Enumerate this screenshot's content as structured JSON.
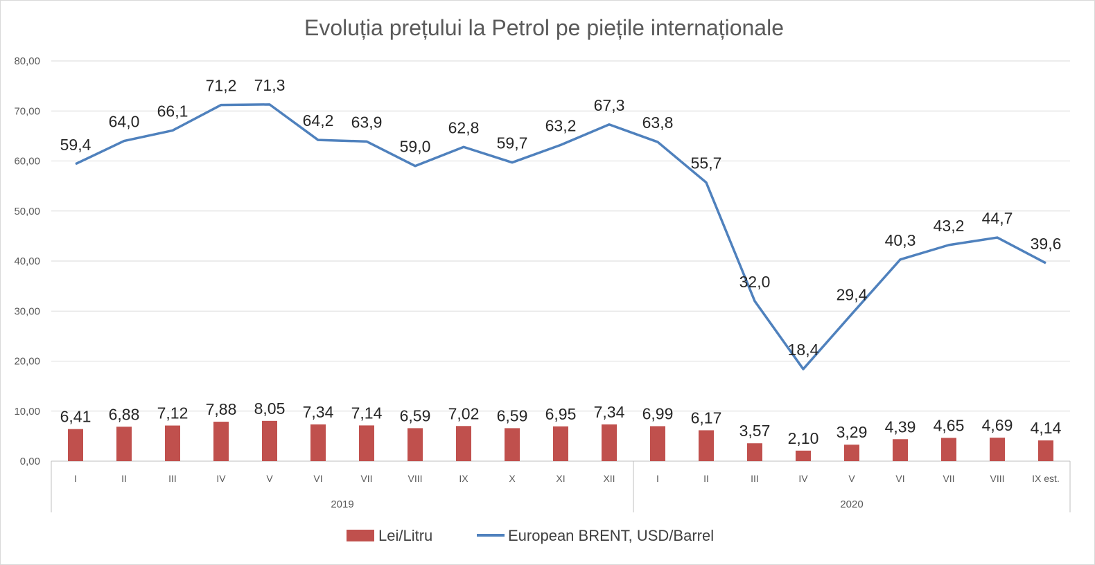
{
  "chart_data": {
    "type": "bar",
    "title": "Evoluția prețului la Petrol pe piețile internaționale",
    "ylim": [
      0,
      80
    ],
    "y_ticks": [
      "0,00",
      "10,00",
      "20,00",
      "30,00",
      "40,00",
      "50,00",
      "60,00",
      "70,00",
      "80,00"
    ],
    "grid": true,
    "legend_position": "bottom",
    "categories": [
      "I",
      "II",
      "III",
      "IV",
      "V",
      "VI",
      "VII",
      "VIII",
      "IX",
      "X",
      "XI",
      "XII",
      "I",
      "II",
      "III",
      "IV",
      "V",
      "VI",
      "VII",
      "VIII",
      "IX est."
    ],
    "groups": [
      {
        "label": "2019",
        "count": 12
      },
      {
        "label": "2020",
        "count": 9
      }
    ],
    "series": [
      {
        "name": "Lei/Litru",
        "type": "bar",
        "color": "#C0504D",
        "values": [
          6.41,
          6.88,
          7.12,
          7.88,
          8.05,
          7.34,
          7.14,
          6.59,
          7.02,
          6.59,
          6.95,
          7.34,
          6.99,
          6.17,
          3.57,
          2.1,
          3.29,
          4.39,
          4.65,
          4.69,
          4.14
        ],
        "labels": [
          "6,41",
          "6,88",
          "7,12",
          "7,88",
          "8,05",
          "7,34",
          "7,14",
          "6,59",
          "7,02",
          "6,59",
          "6,95",
          "7,34",
          "6,99",
          "6,17",
          "3,57",
          "2,10",
          "3,29",
          "4,39",
          "4,65",
          "4,69",
          "4,14"
        ]
      },
      {
        "name": "European BRENT, USD/Barrel",
        "type": "line",
        "color": "#4F81BD",
        "values": [
          59.4,
          64.0,
          66.1,
          71.2,
          71.3,
          64.2,
          63.9,
          59.0,
          62.8,
          59.7,
          63.2,
          67.3,
          63.8,
          55.7,
          32.0,
          18.4,
          29.4,
          40.3,
          43.2,
          44.7,
          39.6
        ],
        "labels": [
          "59,4",
          "64,0",
          "66,1",
          "71,2",
          "71,3",
          "64,2",
          "63,9",
          "59,0",
          "62,8",
          "59,7",
          "63,2",
          "67,3",
          "63,8",
          "55,7",
          "32,0",
          "18,4",
          "29,4",
          "40,3",
          "43,2",
          "44,7",
          "39,6"
        ]
      }
    ]
  }
}
